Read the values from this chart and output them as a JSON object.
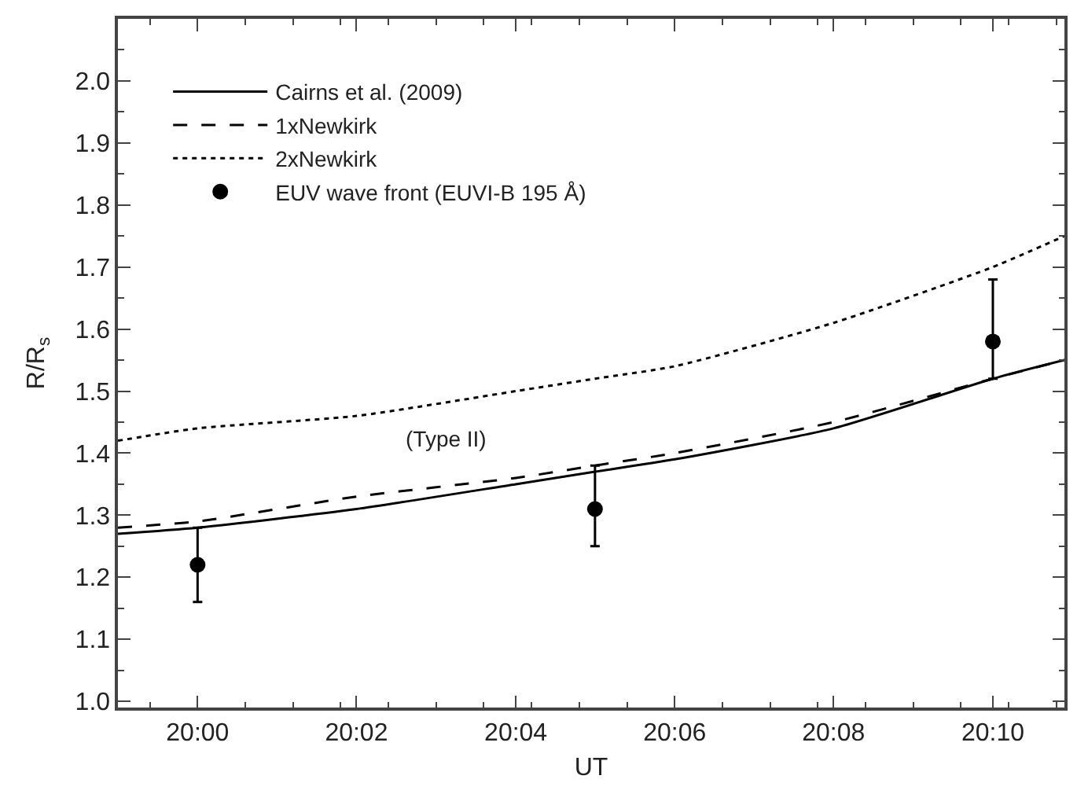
{
  "chart_data": {
    "type": "line",
    "xlabel": "UT",
    "ylabel": "R/R$_{s}$",
    "xlim": [
      19.9833,
      20.1817
    ],
    "ylim": [
      0.99,
      2.1
    ],
    "xticks": [
      {
        "value": 20.0,
        "label": "20:00"
      },
      {
        "value": 20.0333,
        "label": "20:02"
      },
      {
        "value": 20.0667,
        "label": "20:04"
      },
      {
        "value": 20.1,
        "label": "20:06"
      },
      {
        "value": 20.1333,
        "label": "20:08"
      },
      {
        "value": 20.1667,
        "label": "20:10"
      }
    ],
    "yticks": [
      {
        "value": 1.0,
        "label": "1.0"
      },
      {
        "value": 1.1,
        "label": "1.1"
      },
      {
        "value": 1.2,
        "label": "1.2"
      },
      {
        "value": 1.3,
        "label": "1.3"
      },
      {
        "value": 1.4,
        "label": "1.4"
      },
      {
        "value": 1.5,
        "label": "1.5"
      },
      {
        "value": 1.6,
        "label": "1.6"
      },
      {
        "value": 1.7,
        "label": "1.7"
      },
      {
        "value": 1.8,
        "label": "1.8"
      },
      {
        "value": 1.9,
        "label": "1.9"
      },
      {
        "value": 2.0,
        "label": "2.0"
      }
    ],
    "legend": "top left",
    "annotations": [
      "(Type II)"
    ],
    "series": [
      {
        "name": "Cairns et al. (2009)",
        "line_style": "solid",
        "marker": "none",
        "color": "#000000",
        "x": [
          19.9833,
          20.0,
          20.0333,
          20.0667,
          20.0833,
          20.1,
          20.1333,
          20.1667,
          20.1817
        ],
        "values": [
          1.27,
          1.28,
          1.31,
          1.35,
          1.37,
          1.39,
          1.44,
          1.52,
          1.55
        ]
      },
      {
        "name": "1xNewkirk",
        "line_style": "dashed",
        "marker": "none",
        "color": "#000000",
        "x": [
          19.9833,
          20.0,
          20.0333,
          20.0667,
          20.0833,
          20.1,
          20.1333,
          20.1667,
          20.1817
        ],
        "values": [
          1.28,
          1.29,
          1.33,
          1.36,
          1.38,
          1.4,
          1.45,
          1.52,
          1.55
        ]
      },
      {
        "name": "2xNewkirk",
        "line_style": "dotted",
        "marker": "none",
        "color": "#000000",
        "x": [
          19.9833,
          20.0,
          20.0333,
          20.0667,
          20.0833,
          20.1,
          20.1333,
          20.1667,
          20.1817
        ],
        "values": [
          1.42,
          1.44,
          1.46,
          1.5,
          1.52,
          1.54,
          1.61,
          1.7,
          1.75
        ]
      },
      {
        "name": "EUV wave front (EUVI-B 195 Å)",
        "type": "scatter",
        "marker": "circle",
        "color": "#000000",
        "x": [
          20.0,
          20.0833,
          20.1667
        ],
        "values": [
          1.22,
          1.31,
          1.58
        ],
        "errors": [
          [
            1.16,
            1.28
          ],
          [
            1.25,
            1.38
          ],
          [
            1.52,
            1.68
          ]
        ]
      }
    ]
  }
}
